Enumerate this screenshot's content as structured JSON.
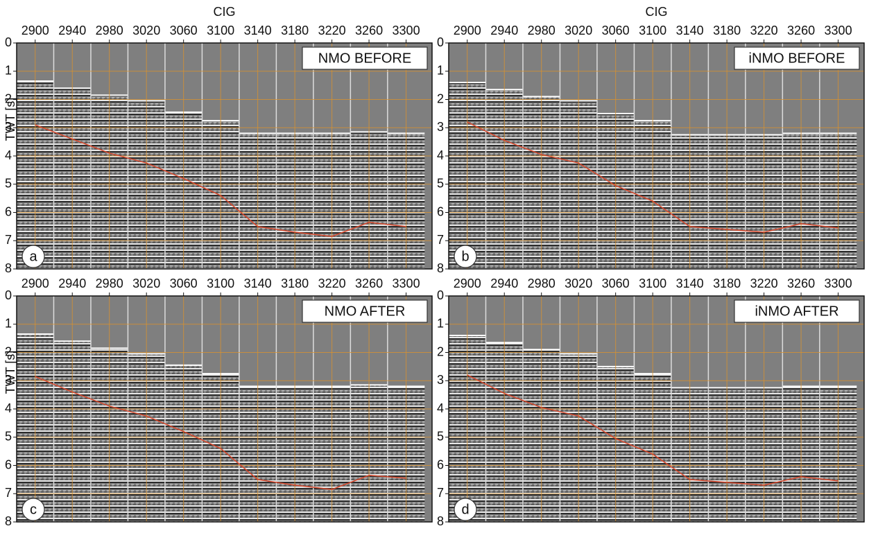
{
  "chart_data": [
    {
      "type": "seismic",
      "title": "NMO BEFORE",
      "panel_label": "a",
      "xlabel": "CIG",
      "ylabel": "TWT [s]",
      "xlim": [
        2880,
        3328
      ],
      "xticks": [
        2900,
        2940,
        2980,
        3020,
        3060,
        3100,
        3140,
        3180,
        3220,
        3260,
        3300
      ],
      "ylim": [
        0,
        8
      ],
      "yticks": [
        0,
        1,
        2,
        3,
        4,
        5,
        6,
        7,
        8
      ],
      "grid": true,
      "grid_color": "#d9922e",
      "first_arrival": [
        1.35,
        1.6,
        1.85,
        2.05,
        2.45,
        2.75,
        3.2,
        3.2,
        3.2,
        3.15,
        3.2
      ],
      "picks": [
        2.9,
        3.4,
        3.9,
        4.25,
        4.8,
        5.4,
        6.5,
        6.7,
        6.85,
        6.35,
        6.5
      ],
      "pick_color": "#d9472b"
    },
    {
      "type": "seismic",
      "title": "iNMO BEFORE",
      "panel_label": "b",
      "xlabel": "CIG",
      "xlim": [
        2880,
        3328
      ],
      "xticks": [
        2900,
        2940,
        2980,
        3020,
        3060,
        3100,
        3140,
        3180,
        3220,
        3260,
        3300
      ],
      "ylim": [
        0,
        8
      ],
      "yticks": [
        0,
        1,
        2,
        3,
        4,
        5,
        6,
        7,
        8
      ],
      "grid": true,
      "grid_color": "#d9922e",
      "first_arrival": [
        1.4,
        1.65,
        1.9,
        2.05,
        2.5,
        2.75,
        3.25,
        3.25,
        3.25,
        3.2,
        3.2
      ],
      "picks": [
        2.8,
        3.45,
        3.95,
        4.25,
        5.05,
        5.6,
        6.5,
        6.6,
        6.7,
        6.4,
        6.55
      ],
      "pick_color": "#d9472b"
    },
    {
      "type": "seismic",
      "title": "NMO AFTER",
      "panel_label": "c",
      "ylabel": "TWT [s]",
      "xlim": [
        2880,
        3328
      ],
      "xticks": [
        2900,
        2940,
        2980,
        3020,
        3060,
        3100,
        3140,
        3180,
        3220,
        3260,
        3300
      ],
      "ylim": [
        0,
        8
      ],
      "yticks": [
        0,
        1,
        2,
        3,
        4,
        5,
        6,
        7,
        8
      ],
      "grid": true,
      "grid_color": "#d9922e",
      "first_arrival": [
        1.35,
        1.6,
        1.85,
        2.05,
        2.45,
        2.75,
        3.2,
        3.2,
        3.2,
        3.15,
        3.2
      ],
      "picks": [
        2.85,
        3.4,
        3.9,
        4.25,
        4.8,
        5.4,
        6.5,
        6.7,
        6.85,
        6.35,
        6.45
      ],
      "pick_color": "#d9472b"
    },
    {
      "type": "seismic",
      "title": "iNMO AFTER",
      "panel_label": "d",
      "xlim": [
        2880,
        3328
      ],
      "xticks": [
        2900,
        2940,
        2980,
        3020,
        3060,
        3100,
        3140,
        3180,
        3220,
        3260,
        3300
      ],
      "ylim": [
        0,
        8
      ],
      "yticks": [
        0,
        1,
        2,
        3,
        4,
        5,
        6,
        7,
        8
      ],
      "grid": true,
      "grid_color": "#d9922e",
      "first_arrival": [
        1.4,
        1.65,
        1.9,
        2.05,
        2.5,
        2.75,
        3.25,
        3.25,
        3.25,
        3.2,
        3.2
      ],
      "picks": [
        2.8,
        3.45,
        3.95,
        4.25,
        5.05,
        5.6,
        6.5,
        6.6,
        6.7,
        6.4,
        6.55
      ],
      "pick_color": "#d9472b"
    }
  ]
}
